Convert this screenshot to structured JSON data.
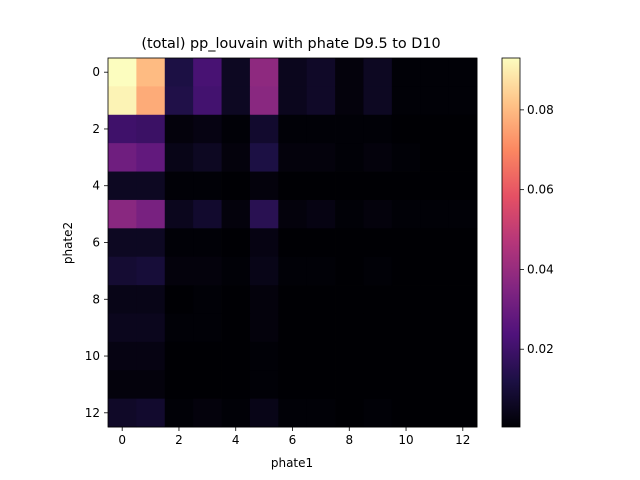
{
  "chart_data": {
    "type": "heatmap",
    "title": "(total) pp_louvain with phate D9.5 to D10",
    "xlabel": "phate1",
    "ylabel": "phate2",
    "x": [
      0,
      1,
      2,
      3,
      4,
      5,
      6,
      7,
      8,
      9,
      10,
      11,
      12
    ],
    "y": [
      0,
      1,
      2,
      3,
      4,
      5,
      6,
      7,
      8,
      9,
      10,
      11,
      12
    ],
    "x_ticks": [
      "0",
      "2",
      "4",
      "6",
      "8",
      "10",
      "12"
    ],
    "y_ticks": [
      "0",
      "2",
      "4",
      "6",
      "8",
      "10",
      "12"
    ],
    "y_axis_inverted": true,
    "colormap": "magma",
    "vmin": 0.0005,
    "vmax": 0.093,
    "colorbar_ticks": [
      "0.02",
      "0.04",
      "0.06",
      "0.08"
    ],
    "grid": false,
    "values": [
      [
        0.093,
        0.08,
        0.012,
        0.022,
        0.006,
        0.038,
        0.005,
        0.007,
        0.002,
        0.006,
        0.001,
        0.001,
        0.001
      ],
      [
        0.091,
        0.077,
        0.013,
        0.021,
        0.006,
        0.037,
        0.005,
        0.007,
        0.002,
        0.006,
        0.001,
        0.001,
        0.001
      ],
      [
        0.02,
        0.019,
        0.002,
        0.003,
        0.001,
        0.008,
        0.001,
        0.001,
        0.001,
        0.001,
        0.0005,
        0.0005,
        0.0005
      ],
      [
        0.031,
        0.028,
        0.004,
        0.006,
        0.002,
        0.012,
        0.002,
        0.002,
        0.001,
        0.002,
        0.001,
        0.0005,
        0.0005
      ],
      [
        0.006,
        0.006,
        0.001,
        0.001,
        0.0005,
        0.002,
        0.0005,
        0.0005,
        0.0005,
        0.0005,
        0.0005,
        0.0005,
        0.0005
      ],
      [
        0.037,
        0.033,
        0.005,
        0.008,
        0.002,
        0.015,
        0.002,
        0.003,
        0.001,
        0.002,
        0.001,
        0.001,
        0.001
      ],
      [
        0.006,
        0.006,
        0.001,
        0.001,
        0.0005,
        0.003,
        0.0005,
        0.0005,
        0.0005,
        0.0005,
        0.0005,
        0.0005,
        0.0005
      ],
      [
        0.009,
        0.01,
        0.002,
        0.002,
        0.001,
        0.004,
        0.001,
        0.001,
        0.0005,
        0.001,
        0.0005,
        0.0005,
        0.0005
      ],
      [
        0.004,
        0.004,
        0.0005,
        0.001,
        0.0005,
        0.002,
        0.0005,
        0.0005,
        0.0005,
        0.0005,
        0.0005,
        0.0005,
        0.0005
      ],
      [
        0.005,
        0.005,
        0.001,
        0.001,
        0.0005,
        0.002,
        0.0005,
        0.0005,
        0.0005,
        0.0005,
        0.0005,
        0.0005,
        0.0005
      ],
      [
        0.003,
        0.003,
        0.0005,
        0.0005,
        0.0005,
        0.001,
        0.0005,
        0.0005,
        0.0005,
        0.0005,
        0.0005,
        0.0005,
        0.0005
      ],
      [
        0.002,
        0.002,
        0.0005,
        0.0005,
        0.0005,
        0.001,
        0.0005,
        0.0005,
        0.0005,
        0.0005,
        0.0005,
        0.0005,
        0.0005
      ],
      [
        0.007,
        0.008,
        0.001,
        0.002,
        0.001,
        0.004,
        0.001,
        0.001,
        0.0005,
        0.001,
        0.0005,
        0.0005,
        0.0005
      ]
    ]
  }
}
